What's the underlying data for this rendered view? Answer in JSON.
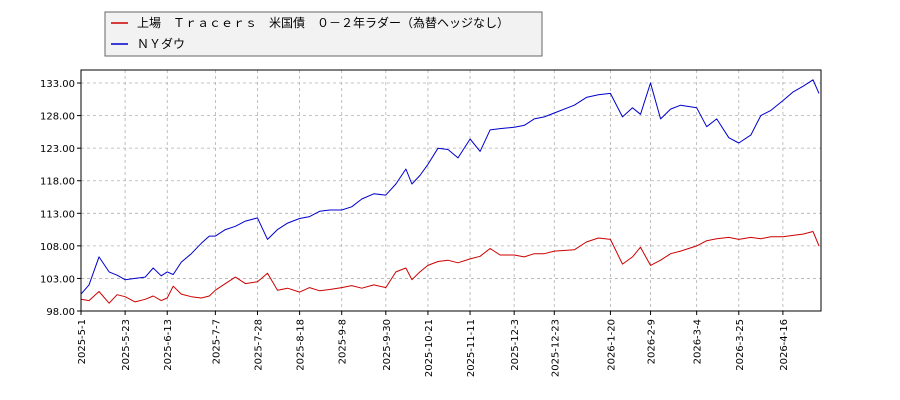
{
  "chart_data": {
    "type": "line",
    "title": "",
    "xlabel": "",
    "ylabel": "",
    "ylim": [
      98.0,
      135.0
    ],
    "yticks": [
      98.0,
      103.0,
      108.0,
      113.0,
      118.0,
      123.0,
      128.0,
      133.0
    ],
    "ytick_labels": [
      "98.00",
      "103.00",
      "108.00",
      "113.00",
      "118.00",
      "123.00",
      "128.00",
      "133.00"
    ],
    "xlim": [
      "2025-05-01",
      "2026-05-05"
    ],
    "xticks": [
      "2025-05-01",
      "2025-05-23",
      "2025-06-13",
      "2025-07-07",
      "2025-07-28",
      "2025-08-18",
      "2025-09-08",
      "2025-09-30",
      "2025-10-21",
      "2025-11-11",
      "2025-12-03",
      "2025-12-23",
      "2026-01-20",
      "2026-02-09",
      "2026-03-04",
      "2026-03-25",
      "2026-04-16"
    ],
    "xtick_labels": [
      "2025-5-1",
      "2025-5-23",
      "2025-6-13",
      "2025-7-7",
      "2025-7-28",
      "2025-8-18",
      "2025-9-8",
      "2025-9-30",
      "2025-10-21",
      "2025-11-11",
      "2025-12-3",
      "2025-12-23",
      "2026-1-20",
      "2026-2-9",
      "2026-3-4",
      "2026-3-25",
      "2026-4-16"
    ],
    "grid": true,
    "legend_position": "top-left",
    "series": [
      {
        "name": "上場　Ｔｒａｃｅｒｓ　米国債　０－２年ラダー（為替ヘッジなし）",
        "color": "#cc0000",
        "x": [
          "2025-05-01",
          "2025-05-05",
          "2025-05-10",
          "2025-05-15",
          "2025-05-19",
          "2025-05-23",
          "2025-05-28",
          "2025-06-02",
          "2025-06-06",
          "2025-06-10",
          "2025-06-13",
          "2025-06-16",
          "2025-06-20",
          "2025-06-25",
          "2025-06-30",
          "2025-07-04",
          "2025-07-07",
          "2025-07-12",
          "2025-07-17",
          "2025-07-22",
          "2025-07-28",
          "2025-08-02",
          "2025-08-07",
          "2025-08-12",
          "2025-08-18",
          "2025-08-23",
          "2025-08-28",
          "2025-09-02",
          "2025-09-08",
          "2025-09-13",
          "2025-09-18",
          "2025-09-24",
          "2025-09-30",
          "2025-10-05",
          "2025-10-10",
          "2025-10-13",
          "2025-10-17",
          "2025-10-21",
          "2025-10-26",
          "2025-10-31",
          "2025-11-05",
          "2025-11-11",
          "2025-11-16",
          "2025-11-21",
          "2025-11-26",
          "2025-12-03",
          "2025-12-08",
          "2025-12-13",
          "2025-12-18",
          "2025-12-23",
          "2026-01-02",
          "2026-01-08",
          "2026-01-14",
          "2026-01-20",
          "2026-01-26",
          "2026-01-31",
          "2026-02-04",
          "2026-02-09",
          "2026-02-14",
          "2026-02-19",
          "2026-02-24",
          "2026-03-04",
          "2026-03-09",
          "2026-03-14",
          "2026-03-20",
          "2026-03-25",
          "2026-03-31",
          "2026-04-05",
          "2026-04-10",
          "2026-04-16",
          "2026-04-21",
          "2026-04-26",
          "2026-05-01",
          "2026-05-04"
        ],
        "values": [
          99.8,
          99.6,
          101.0,
          99.2,
          100.5,
          100.2,
          99.4,
          99.8,
          100.3,
          99.6,
          100.0,
          101.8,
          100.6,
          100.2,
          100.0,
          100.3,
          101.2,
          102.2,
          103.2,
          102.2,
          102.5,
          103.8,
          101.2,
          101.5,
          100.9,
          101.6,
          101.1,
          101.3,
          101.6,
          101.9,
          101.5,
          102.0,
          101.6,
          104.0,
          104.6,
          102.8,
          104.0,
          105.0,
          105.6,
          105.8,
          105.4,
          106.0,
          106.4,
          107.6,
          106.6,
          106.6,
          106.3,
          106.8,
          106.8,
          107.2,
          107.4,
          108.6,
          109.2,
          109.0,
          105.2,
          106.3,
          107.8,
          105.0,
          105.8,
          106.8,
          107.2,
          108.0,
          108.8,
          109.1,
          109.3,
          109.0,
          109.3,
          109.1,
          109.4,
          109.4,
          109.6,
          109.8,
          110.2,
          108.0
        ]
      },
      {
        "name": "ＮＹダウ",
        "color": "#0000cc",
        "x": [
          "2025-05-01",
          "2025-05-05",
          "2025-05-10",
          "2025-05-15",
          "2025-05-19",
          "2025-05-23",
          "2025-05-28",
          "2025-06-02",
          "2025-06-06",
          "2025-06-10",
          "2025-06-13",
          "2025-06-16",
          "2025-06-20",
          "2025-06-25",
          "2025-06-30",
          "2025-07-04",
          "2025-07-07",
          "2025-07-12",
          "2025-07-17",
          "2025-07-22",
          "2025-07-28",
          "2025-08-02",
          "2025-08-07",
          "2025-08-12",
          "2025-08-18",
          "2025-08-23",
          "2025-08-28",
          "2025-09-02",
          "2025-09-08",
          "2025-09-13",
          "2025-09-18",
          "2025-09-24",
          "2025-09-30",
          "2025-10-05",
          "2025-10-10",
          "2025-10-13",
          "2025-10-17",
          "2025-10-21",
          "2025-10-26",
          "2025-10-31",
          "2025-11-05",
          "2025-11-11",
          "2025-11-16",
          "2025-11-21",
          "2025-11-26",
          "2025-12-03",
          "2025-12-08",
          "2025-12-13",
          "2025-12-18",
          "2025-12-23",
          "2026-01-02",
          "2026-01-08",
          "2026-01-14",
          "2026-01-20",
          "2026-01-26",
          "2026-01-31",
          "2026-02-04",
          "2026-02-09",
          "2026-02-14",
          "2026-02-19",
          "2026-02-24",
          "2026-03-04",
          "2026-03-09",
          "2026-03-14",
          "2026-03-20",
          "2026-03-25",
          "2026-03-31",
          "2026-04-05",
          "2026-04-10",
          "2026-04-16",
          "2026-04-21",
          "2026-04-26",
          "2026-05-01",
          "2026-05-04"
        ],
        "values": [
          100.6,
          102.0,
          106.3,
          104.0,
          103.5,
          102.8,
          103.0,
          103.2,
          104.6,
          103.4,
          104.0,
          103.6,
          105.5,
          106.8,
          108.4,
          109.5,
          109.5,
          110.5,
          111.0,
          111.8,
          112.3,
          109.0,
          110.5,
          111.5,
          112.2,
          112.5,
          113.3,
          113.5,
          113.5,
          114.0,
          115.2,
          116.0,
          115.8,
          117.5,
          119.8,
          117.5,
          118.8,
          120.5,
          123.0,
          122.8,
          121.5,
          124.4,
          122.5,
          125.8,
          126.0,
          126.2,
          126.5,
          127.5,
          127.8,
          128.4,
          129.6,
          130.8,
          131.2,
          131.4,
          127.8,
          129.2,
          128.2,
          133.0,
          127.5,
          129.0,
          129.6,
          129.2,
          126.3,
          127.5,
          124.6,
          123.8,
          125.0,
          128.0,
          128.8,
          130.3,
          131.6,
          132.5,
          133.5,
          131.4
        ]
      }
    ]
  }
}
